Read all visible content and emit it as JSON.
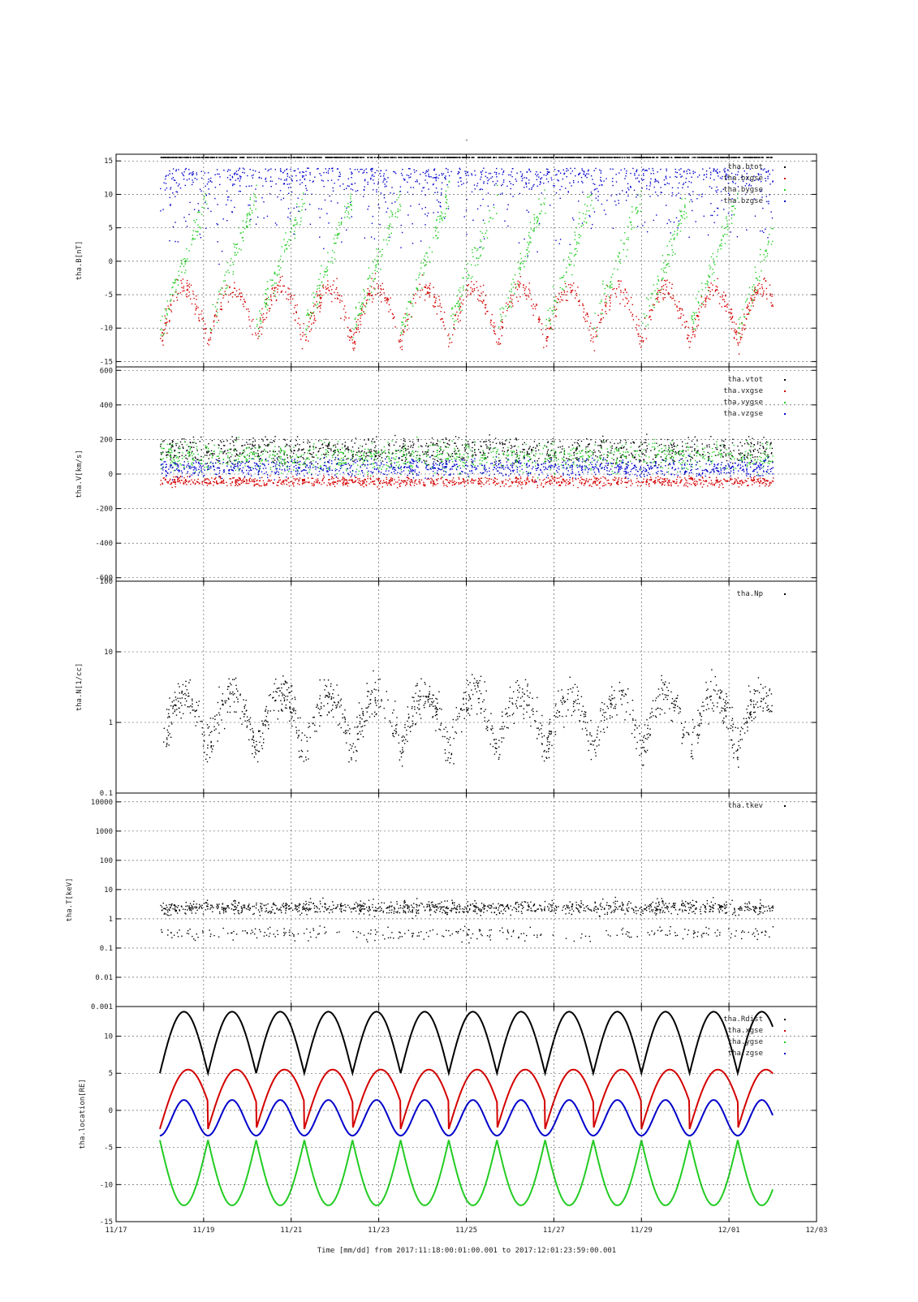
{
  "title": "-",
  "footer": {
    "xlabel": "Time [mm/dd]  from 2017:11:18:00:01:00.001  to  2017:12:01:23:59:00.001"
  },
  "colors": {
    "black": "#000000",
    "red": "#d40000",
    "green": "#22cc22",
    "blue": "#0000cc"
  },
  "chart_data": [
    {
      "type": "scatter",
      "ylabel": "tha.B[nT]",
      "ylim": [
        -15.8,
        16
      ],
      "yscale": "linear",
      "yticks": [
        -15,
        -10,
        -5,
        0,
        5,
        10,
        15
      ],
      "yticklabels": [
        "-15",
        "-10",
        "-5",
        "0",
        "5",
        "10",
        "15"
      ],
      "legend": "top-right",
      "series": [
        {
          "name": "tha.btot",
          "color": "black"
        },
        {
          "name": "tha.bxgse",
          "color": "red"
        },
        {
          "name": "tha.bygse",
          "color": "green"
        },
        {
          "name": "tha.bzgse",
          "color": "blue"
        }
      ]
    },
    {
      "type": "scatter",
      "ylabel": "tha.V[km/s]",
      "ylim": [
        -620,
        620
      ],
      "yscale": "linear",
      "yticks": [
        -600,
        -400,
        -200,
        0,
        200,
        400,
        600
      ],
      "yticklabels": [
        "-600",
        "-400",
        "-200",
        "0",
        "200",
        "400",
        "600"
      ],
      "legend": "top-right",
      "series": [
        {
          "name": "tha.vtot",
          "color": "black"
        },
        {
          "name": "tha.vxgse",
          "color": "red"
        },
        {
          "name": "tha.vygse",
          "color": "green"
        },
        {
          "name": "tha.vzgse",
          "color": "blue"
        }
      ]
    },
    {
      "type": "scatter",
      "ylabel": "tha.N[1/cc]",
      "ylim": [
        0.1,
        100
      ],
      "yscale": "log",
      "yticks": [
        0.1,
        1,
        10,
        100
      ],
      "yticklabels": [
        "0.1",
        "1",
        "10",
        "100"
      ],
      "legend": "top-right",
      "series": [
        {
          "name": "tha.Np",
          "color": "black"
        }
      ]
    },
    {
      "type": "scatter",
      "ylabel": "tha.T[keV]",
      "ylim": [
        0.001,
        20000
      ],
      "yscale": "log",
      "yticks": [
        0.001,
        0.01,
        0.1,
        1,
        10,
        100,
        1000,
        10000
      ],
      "yticklabels": [
        "0.001",
        "0.01",
        "0.1",
        "1",
        "10",
        "100",
        "1000",
        "10000"
      ],
      "legend": "top-right",
      "series": [
        {
          "name": "tha.tkev",
          "color": "black"
        }
      ]
    },
    {
      "type": "line",
      "ylabel": "tha.location[RE]",
      "ylim": [
        -15,
        14
      ],
      "yscale": "linear",
      "yticks": [
        -15,
        -10,
        -5,
        0,
        5,
        10
      ],
      "yticklabels": [
        "-15",
        "-10",
        "-5",
        "0",
        "5",
        "10"
      ],
      "legend": "top-right",
      "series": [
        {
          "name": "tha.Rdist",
          "color": "black"
        },
        {
          "name": "tha.xgse",
          "color": "red"
        },
        {
          "name": "tha.ygse",
          "color": "green"
        },
        {
          "name": "tha.zgse",
          "color": "blue"
        }
      ]
    }
  ],
  "xaxis": {
    "range": [
      "11/17",
      "12/03"
    ],
    "ticks": [
      "11/17",
      "11/19",
      "11/21",
      "11/23",
      "11/25",
      "11/27",
      "11/29",
      "12/01",
      "12/03"
    ]
  }
}
